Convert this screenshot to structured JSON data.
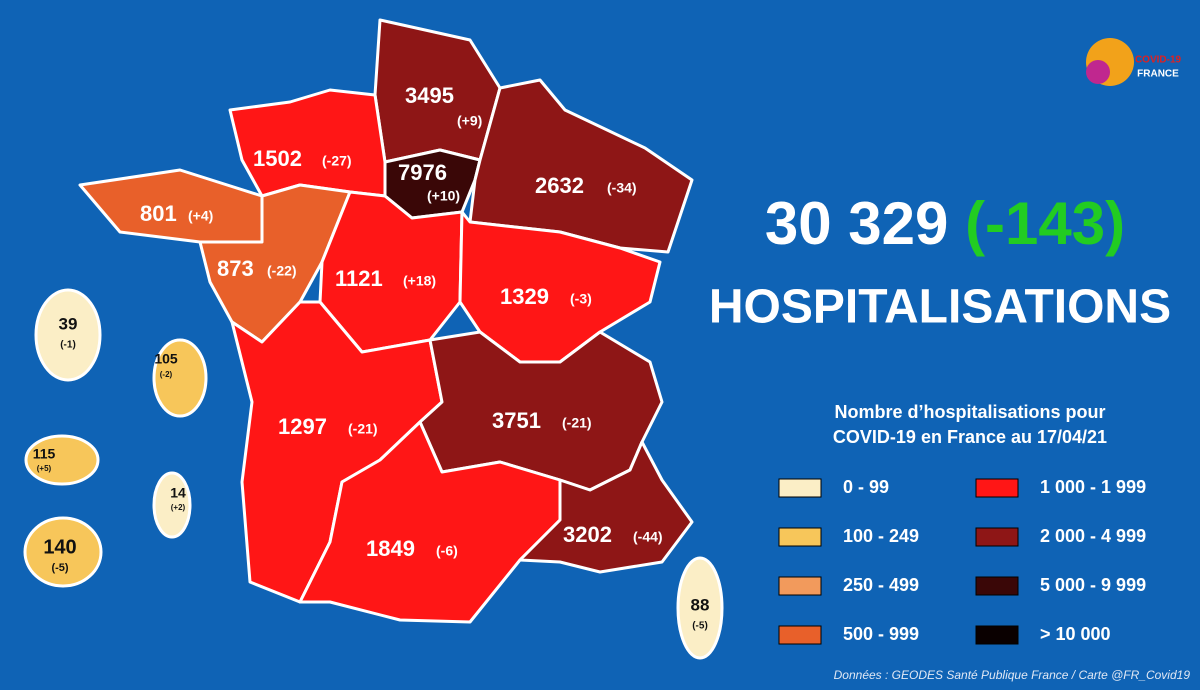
{
  "logo": {
    "line1": "COVID-19",
    "line2": "FRANCE"
  },
  "total": {
    "value": "30 329",
    "change": "(-143)",
    "label": "HOSPITALISATIONS"
  },
  "regions": [
    {
      "value": "3495",
      "change": "(+9)",
      "color": "#8e1616"
    },
    {
      "value": "7976",
      "change": "(+10)",
      "color": "#3a0707"
    },
    {
      "value": "2632",
      "change": "(-34)",
      "color": "#8e1616"
    },
    {
      "value": "1502",
      "change": "(-27)",
      "color": "#ff1616"
    },
    {
      "value": "801",
      "change": "(+4)",
      "color": "#e8602a"
    },
    {
      "value": "873",
      "change": "(-22)",
      "color": "#e8602a"
    },
    {
      "value": "1121",
      "change": "(+18)",
      "color": "#ff1616"
    },
    {
      "value": "1329",
      "change": "(-3)",
      "color": "#ff1616"
    },
    {
      "value": "1297",
      "change": "(-21)",
      "color": "#ff1616"
    },
    {
      "value": "3751",
      "change": "(-21)",
      "color": "#8e1616"
    },
    {
      "value": "1849",
      "change": "(-6)",
      "color": "#ff1616"
    },
    {
      "value": "3202",
      "change": "(-44)",
      "color": "#8e1616"
    },
    {
      "value": "88",
      "change": "(-5)",
      "color": "#fbeec6"
    },
    {
      "value": "39",
      "change": "(-1)",
      "color": "#fbeec6"
    },
    {
      "value": "105",
      "change": "(-2)",
      "color": "#f7c65a"
    },
    {
      "value": "115",
      "change": "(+5)",
      "color": "#f7c65a"
    },
    {
      "value": "14",
      "change": "(+2)",
      "color": "#fbeec6"
    },
    {
      "value": "140",
      "change": "(-5)",
      "color": "#f7c65a"
    }
  ],
  "legend": {
    "title_line1": "Nombre d’hospitalisations pour",
    "title_line2": "COVID-19 en France au 17/04/21",
    "items": [
      {
        "label": "0 - 99",
        "color": "#fbeec6"
      },
      {
        "label": "100 - 249",
        "color": "#f7c65a"
      },
      {
        "label": "250 - 499",
        "color": "#f29a5c"
      },
      {
        "label": "500 - 999",
        "color": "#e8602a"
      },
      {
        "label": "1 000 - 1 999",
        "color": "#ff1616"
      },
      {
        "label": "2 000 - 4 999",
        "color": "#8e1616"
      },
      {
        "label": "5 000 - 9 999",
        "color": "#3a0707"
      },
      {
        "label": "> 10 000",
        "color": "#0a0000"
      }
    ]
  },
  "credit": "Données : GEODES Santé Publique France / Carte @FR_Covid19"
}
